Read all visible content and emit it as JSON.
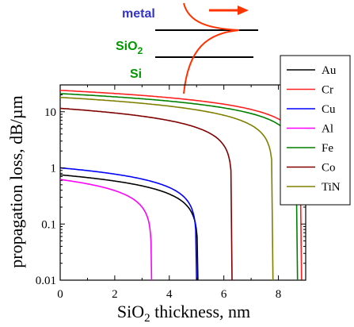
{
  "chart_data": {
    "type": "line",
    "xlabel_main": "SiO",
    "xlabel_sub": "2",
    "xlabel_rest": " thickness, nm",
    "ylabel": "propagation loss, dB/µm",
    "xlim": [
      0,
      9
    ],
    "ylim": [
      0.01,
      30
    ],
    "yscale": "log",
    "x_ticks": [
      0,
      2,
      4,
      6,
      8
    ],
    "y_ticks": [
      {
        "value": 10,
        "label": "10"
      },
      {
        "value": 1,
        "label": "1"
      },
      {
        "value": 0.1,
        "label": "0.1"
      },
      {
        "value": 0.01,
        "label": "0.01"
      }
    ],
    "grid": false,
    "legend_position": "top-right",
    "series": [
      {
        "name": "Au",
        "color": "#000000",
        "y0": 0.75,
        "cutoff": 5.05
      },
      {
        "name": "Cr",
        "color": "#ff2020",
        "y0": 24,
        "cutoff": 8.85
      },
      {
        "name": "Cu",
        "color": "#0000ff",
        "y0": 1.0,
        "cutoff": 5.0
      },
      {
        "name": "Al",
        "color": "#ff00ff",
        "y0": 0.62,
        "cutoff": 3.35
      },
      {
        "name": "Fe",
        "color": "#008000",
        "y0": 21,
        "cutoff": 8.7
      },
      {
        "name": "Co",
        "color": "#800000",
        "y0": 11.5,
        "cutoff": 6.3
      },
      {
        "name": "TiN",
        "color": "#808000",
        "y0": 18,
        "cutoff": 7.8
      }
    ]
  },
  "inset": {
    "metal_label": "metal",
    "oxide_main": "SiO",
    "oxide_sub": "2",
    "si_label": "Si",
    "metal_color": "#3333cc",
    "oxide_color": "#009900",
    "si_color": "#009900",
    "field_color": "#ff3300"
  }
}
